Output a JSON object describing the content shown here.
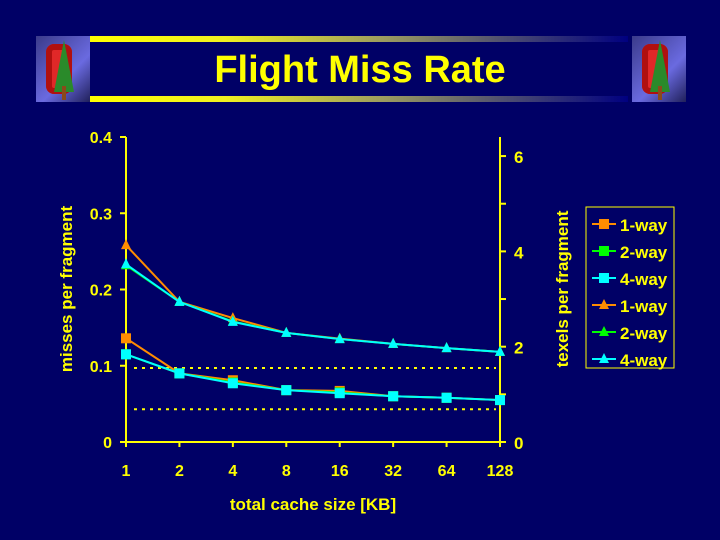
{
  "slide": {
    "title": "Flight Miss Rate"
  },
  "colors": {
    "background": "#000066",
    "axis": "#ffff00",
    "1-way": "#ff8c00",
    "2-way": "#00ff00",
    "4-way": "#00ffff"
  },
  "chart_data": {
    "type": "line",
    "title": "Flight Miss Rate",
    "xlabel": "total cache size [KB]",
    "ylabel": "misses per fragment",
    "ylabel2": "texels per fragment",
    "x": [
      "1",
      "2",
      "4",
      "8",
      "16",
      "32",
      "64",
      "128"
    ],
    "xscale": "log2",
    "ylim": [
      0,
      0.4
    ],
    "yticks": [
      "0",
      "0.1",
      "0.2",
      "0.3",
      "0.4"
    ],
    "ylim2": [
      0,
      6.4
    ],
    "yticks2": [
      "0",
      "2",
      "4",
      "6"
    ],
    "legend_position": "right",
    "series": [
      {
        "name": "1-way",
        "axis": "left",
        "marker": "square",
        "color": "#ff8c00",
        "values": [
          0.136,
          0.09,
          0.081,
          0.068,
          0.067,
          0.06,
          0.058,
          0.055
        ]
      },
      {
        "name": "2-way",
        "axis": "left",
        "marker": "square",
        "color": "#00ff00",
        "values": [
          0.115,
          0.09,
          0.078,
          0.068,
          0.065,
          0.06,
          0.058,
          0.055
        ]
      },
      {
        "name": "4-way",
        "axis": "left",
        "marker": "square",
        "color": "#00ffff",
        "values": [
          0.115,
          0.09,
          0.077,
          0.068,
          0.064,
          0.06,
          0.058,
          0.055
        ]
      },
      {
        "name": "1-way",
        "axis": "right",
        "marker": "triangle",
        "color": "#ff8c00",
        "values": [
          4.13,
          2.94,
          2.6,
          2.29,
          2.17,
          2.06,
          1.97,
          1.89
        ]
      },
      {
        "name": "2-way",
        "axis": "right",
        "marker": "triangle",
        "color": "#00ff00",
        "values": [
          3.71,
          2.94,
          2.53,
          2.29,
          2.16,
          2.06,
          1.97,
          1.89
        ]
      },
      {
        "name": "4-way",
        "axis": "right",
        "marker": "triangle",
        "color": "#00ffff",
        "values": [
          3.73,
          2.94,
          2.52,
          2.29,
          2.16,
          2.06,
          1.97,
          1.89
        ]
      }
    ],
    "reference_lines": [
      {
        "axis": "left",
        "value": 0.097
      },
      {
        "axis": "left",
        "value": 0.043
      }
    ]
  }
}
